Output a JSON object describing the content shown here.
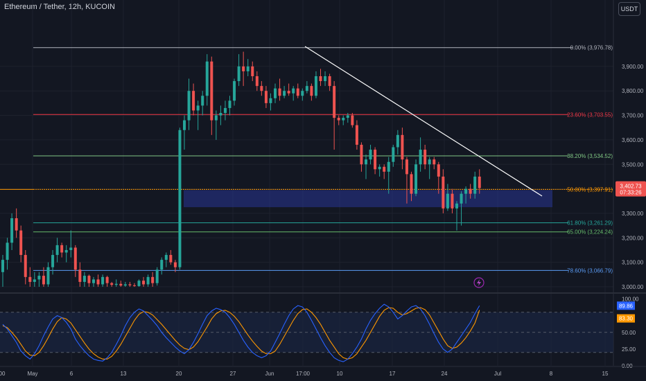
{
  "header": {
    "title": "Ethereum / Tether, 12h, KUCOIN",
    "currency": "USDT"
  },
  "colors": {
    "up": "#26a69a",
    "down": "#ef5350",
    "fib_0": "#b2b5be",
    "fib_236": "#f23645",
    "fib_382": "#81c784",
    "fib_50": "#ff9800",
    "fib_618": "#26a69a",
    "fib_65": "#66bb6a",
    "fib_786": "#5b9cf6",
    "rsi_k": "#2962ff",
    "rsi_d": "#ff9800",
    "zone": "#283593"
  },
  "price_axis": {
    "ticks": [
      "3,900.00",
      "3,800.00",
      "3,700.00",
      "3,600.00",
      "3,500.00",
      "3,300.00",
      "3,200.00",
      "3,100.00",
      "3,000.00"
    ],
    "current_price": "3,402.73",
    "countdown": "07:33:26"
  },
  "time_axis": {
    "labels": [
      "00",
      "May",
      "6",
      "13",
      "20",
      "27",
      "Jun",
      "17:00",
      "10",
      "17",
      "24",
      "Jul",
      "8",
      "15"
    ]
  },
  "fib_levels": [
    {
      "label": "0.00% (3,976.78)",
      "price": 3976.78,
      "color_key": "fib_0"
    },
    {
      "label": "23.60% (3,703.55)",
      "price": 3703.55,
      "color_key": "fib_236"
    },
    {
      "label": "38.20% (3,534.52)",
      "price": 3534.52,
      "color_key": "fib_382"
    },
    {
      "label": "50.00% (3,397.91)",
      "price": 3397.91,
      "color_key": "fib_50"
    },
    {
      "label": "61.80% (3,261.29)",
      "price": 3261.29,
      "color_key": "fib_618"
    },
    {
      "label": "65.00% (3,224.24)",
      "price": 3224.24,
      "color_key": "fib_65"
    },
    {
      "label": "78.60% (3,066.79)",
      "price": 3066.79,
      "color_key": "fib_786"
    }
  ],
  "rsi_axis": {
    "ticks": [
      "100.00",
      "50.00",
      "25.00",
      "0.00"
    ],
    "k_value": "89.86",
    "d_value": "83.30"
  },
  "chart_data": [
    {
      "type": "candlestick",
      "title": "Ethereum / Tether, 12h, KUCOIN",
      "ylim": [
        3000,
        4000
      ],
      "series": [
        {
          "name": "Ethereum / Tether",
          "ohlc": [
            [
              3060,
              3130,
              3000,
              3110
            ],
            [
              3110,
              3200,
              3070,
              3180
            ],
            [
              3180,
              3300,
              3150,
              3280
            ],
            [
              3280,
              3320,
              3200,
              3230
            ],
            [
              3230,
              3250,
              3100,
              3130
            ],
            [
              3130,
              3150,
              3010,
              3040
            ],
            [
              3040,
              3080,
              3000,
              3020
            ],
            [
              3020,
              3060,
              3000,
              3030
            ],
            [
              3030,
              3060,
              3000,
              3045
            ],
            [
              3045,
              3080,
              3000,
              3010
            ],
            [
              3010,
              3100,
              3000,
              3080
            ],
            [
              3080,
              3150,
              3050,
              3130
            ],
            [
              3130,
              3200,
              3100,
              3170
            ],
            [
              3170,
              3180,
              3120,
              3140
            ],
            [
              3140,
              3170,
              3100,
              3150
            ],
            [
              3150,
              3230,
              3120,
              3160
            ],
            [
              3160,
              3170,
              3040,
              3070
            ],
            [
              3070,
              3100,
              3000,
              3020
            ],
            [
              3020,
              3060,
              3000,
              3045
            ],
            [
              3045,
              3050,
              3000,
              3015
            ],
            [
              3015,
              3040,
              3000,
              3030
            ],
            [
              3030,
              3050,
              3000,
              3010
            ],
            [
              3010,
              3050,
              3000,
              3040
            ],
            [
              3040,
              3045,
              3000,
              3015
            ],
            [
              3015,
              3020,
              3000,
              3008
            ],
            [
              3008,
              3030,
              3000,
              3012
            ],
            [
              3012,
              3025,
              3000,
              3005
            ],
            [
              3005,
              3020,
              3000,
              3010
            ],
            [
              3010,
              3020,
              3000,
              3006
            ],
            [
              3006,
              3015,
              3000,
              3003
            ],
            [
              3003,
              3030,
              3000,
              3025
            ],
            [
              3025,
              3040,
              3000,
              3010
            ],
            [
              3010,
              3050,
              3000,
              3040
            ],
            [
              3040,
              3060,
              3000,
              3015
            ],
            [
              3015,
              3080,
              3005,
              3070
            ],
            [
              3070,
              3120,
              3050,
              3110
            ],
            [
              3110,
              3140,
              3080,
              3130
            ],
            [
              3130,
              3150,
              3090,
              3100
            ],
            [
              3100,
              3110,
              3060,
              3080
            ],
            [
              3080,
              3650,
              3070,
              3640
            ],
            [
              3640,
              3700,
              3560,
              3680
            ],
            [
              3680,
              3850,
              3640,
              3800
            ],
            [
              3800,
              3830,
              3700,
              3720
            ],
            [
              3720,
              3760,
              3640,
              3740
            ],
            [
              3740,
              3800,
              3700,
              3780
            ],
            [
              3780,
              3950,
              3740,
              3920
            ],
            [
              3920,
              3940,
              3620,
              3680
            ],
            [
              3680,
              3720,
              3600,
              3700
            ],
            [
              3700,
              3740,
              3660,
              3710
            ],
            [
              3710,
              3760,
              3680,
              3730
            ],
            [
              3730,
              3780,
              3700,
              3760
            ],
            [
              3760,
              3850,
              3740,
              3840
            ],
            [
              3840,
              3950,
              3820,
              3900
            ],
            [
              3900,
              3960,
              3820,
              3880
            ],
            [
              3880,
              3930,
              3860,
              3900
            ],
            [
              3900,
              3920,
              3840,
              3860
            ],
            [
              3860,
              3880,
              3800,
              3820
            ],
            [
              3820,
              3840,
              3780,
              3800
            ],
            [
              3800,
              3820,
              3730,
              3750
            ],
            [
              3750,
              3790,
              3720,
              3770
            ],
            [
              3770,
              3830,
              3750,
              3810
            ],
            [
              3810,
              3850,
              3760,
              3780
            ],
            [
              3780,
              3820,
              3770,
              3800
            ],
            [
              3800,
              3830,
              3780,
              3790
            ],
            [
              3790,
              3820,
              3760,
              3810
            ],
            [
              3810,
              3830,
              3770,
              3780
            ],
            [
              3780,
              3810,
              3760,
              3800
            ],
            [
              3800,
              3840,
              3790,
              3820
            ],
            [
              3820,
              3830,
              3760,
              3780
            ],
            [
              3780,
              3880,
              3770,
              3860
            ],
            [
              3860,
              3890,
              3820,
              3840
            ],
            [
              3840,
              3880,
              3820,
              3860
            ],
            [
              3860,
              3870,
              3800,
              3820
            ],
            [
              3820,
              3840,
              3560,
              3690
            ],
            [
              3690,
              3700,
              3660,
              3680
            ],
            [
              3680,
              3700,
              3660,
              3690
            ],
            [
              3690,
              3710,
              3670,
              3700
            ],
            [
              3700,
              3710,
              3650,
              3660
            ],
            [
              3660,
              3680,
              3560,
              3580
            ],
            [
              3580,
              3590,
              3470,
              3500
            ],
            [
              3500,
              3540,
              3440,
              3520
            ],
            [
              3520,
              3580,
              3500,
              3560
            ],
            [
              3560,
              3570,
              3460,
              3480
            ],
            [
              3480,
              3500,
              3450,
              3490
            ],
            [
              3490,
              3500,
              3440,
              3470
            ],
            [
              3470,
              3530,
              3380,
              3510
            ],
            [
              3510,
              3580,
              3490,
              3570
            ],
            [
              3570,
              3640,
              3540,
              3620
            ],
            [
              3620,
              3650,
              3480,
              3520
            ],
            [
              3520,
              3530,
              3340,
              3460
            ],
            [
              3460,
              3470,
              3350,
              3380
            ],
            [
              3380,
              3520,
              3370,
              3500
            ],
            [
              3500,
              3610,
              3470,
              3560
            ],
            [
              3560,
              3580,
              3480,
              3500
            ],
            [
              3500,
              3530,
              3440,
              3520
            ],
            [
              3520,
              3530,
              3480,
              3500
            ],
            [
              3500,
              3510,
              3380,
              3450
            ],
            [
              3450,
              3480,
              3300,
              3320
            ],
            [
              3320,
              3420,
              3310,
              3380
            ],
            [
              3380,
              3400,
              3300,
              3320
            ],
            [
              3320,
              3350,
              3230,
              3340
            ],
            [
              3340,
              3390,
              3250,
              3380
            ],
            [
              3380,
              3410,
              3340,
              3400
            ],
            [
              3400,
              3420,
              3360,
              3380
            ],
            [
              3380,
              3470,
              3360,
              3450
            ],
            [
              3450,
              3480,
              3380,
              3403
            ]
          ]
        }
      ]
    },
    {
      "type": "line",
      "title": "RSI",
      "ylim": [
        0,
        100
      ],
      "series": [
        {
          "name": "K",
          "values": [
            62,
            55,
            45,
            35,
            22,
            15,
            10,
            18,
            30,
            45,
            58,
            70,
            75,
            72,
            65,
            55,
            40,
            30,
            22,
            15,
            10,
            8,
            7,
            12,
            20,
            32,
            45,
            60,
            72,
            80,
            85,
            82,
            75,
            68,
            60,
            50,
            42,
            35,
            28,
            22,
            18,
            24,
            35,
            48,
            62,
            75,
            82,
            86,
            84,
            80,
            72,
            62,
            50,
            38,
            28,
            20,
            15,
            12,
            15,
            22,
            35,
            48,
            62,
            75,
            85,
            90,
            88,
            80,
            68,
            55,
            42,
            30,
            20,
            12,
            8,
            6,
            10,
            18,
            28,
            40,
            55,
            68,
            78,
            86,
            92,
            88,
            80,
            70,
            75,
            82,
            88,
            90,
            85,
            75,
            62,
            48,
            35,
            25,
            20,
            25,
            35,
            45,
            55,
            65,
            78,
            89.86
          ]
        },
        {
          "name": "D",
          "values": [
            60,
            57,
            50,
            42,
            32,
            22,
            16,
            15,
            20,
            30,
            42,
            55,
            66,
            72,
            70,
            64,
            54,
            44,
            34,
            25,
            18,
            13,
            10,
            10,
            14,
            22,
            32,
            44,
            56,
            68,
            77,
            81,
            80,
            76,
            69,
            62,
            54,
            46,
            38,
            31,
            26,
            24,
            28,
            36,
            47,
            58,
            70,
            78,
            82,
            83,
            80,
            74,
            66,
            56,
            46,
            37,
            29,
            22,
            18,
            18,
            22,
            32,
            44,
            56,
            68,
            78,
            84,
            85,
            80,
            72,
            62,
            50,
            38,
            28,
            18,
            12,
            10,
            12,
            18,
            28,
            38,
            50,
            62,
            74,
            83,
            87,
            86,
            80,
            76,
            78,
            82,
            86,
            87,
            84,
            76,
            64,
            52,
            40,
            30,
            26,
            28,
            34,
            42,
            52,
            64,
            83.3
          ]
        }
      ]
    }
  ]
}
